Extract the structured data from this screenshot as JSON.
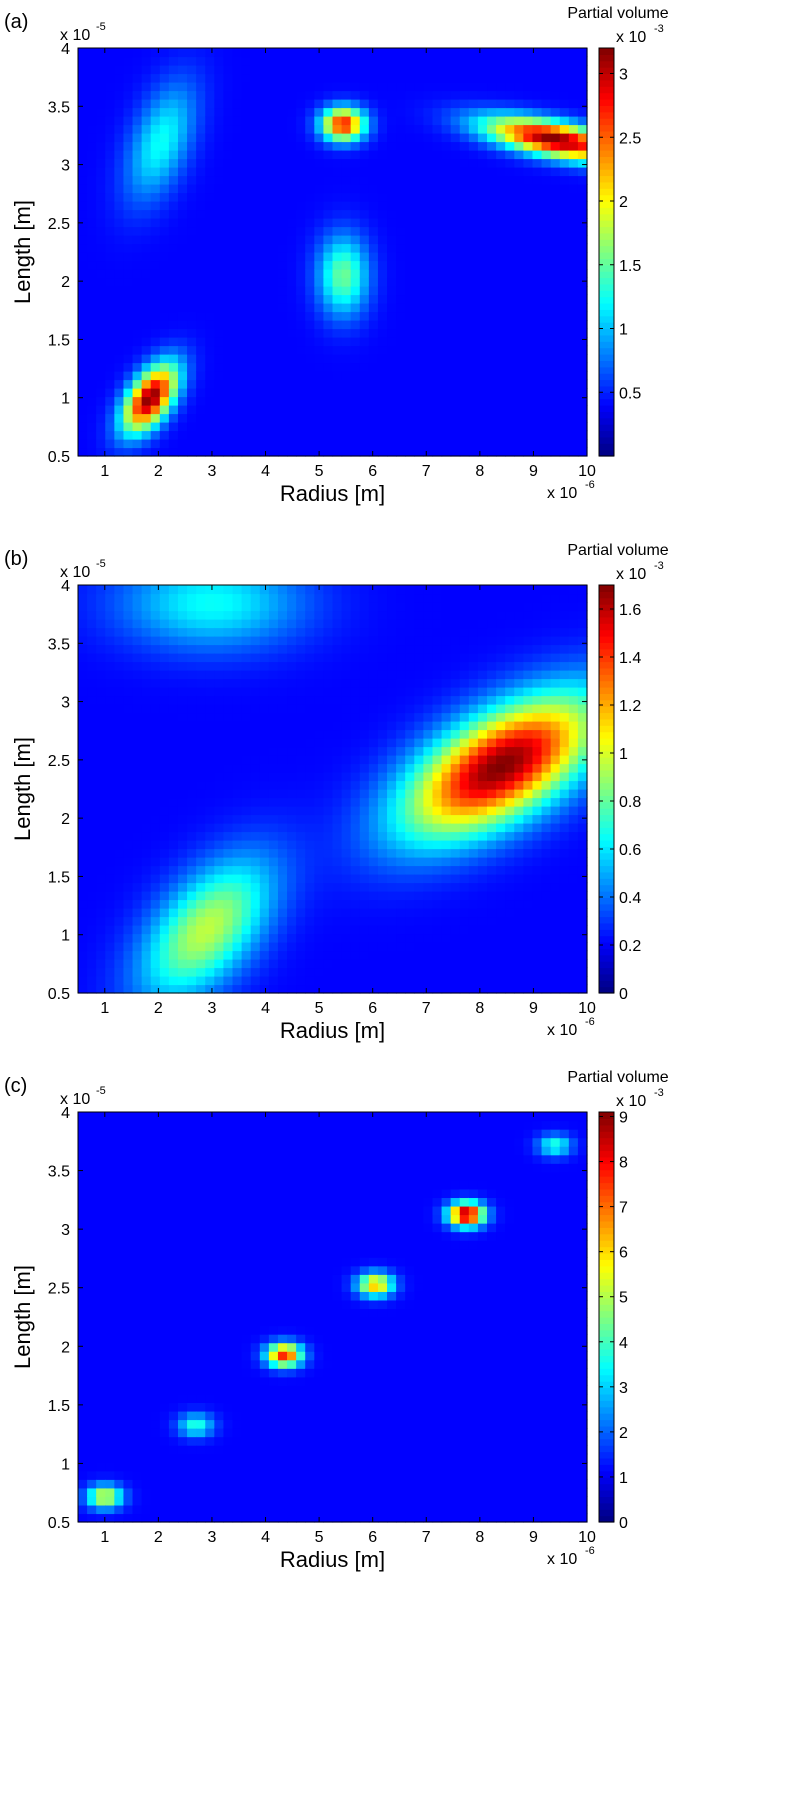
{
  "chart_data": [
    {
      "panel_label": "(a)",
      "type": "heatmap",
      "xlabel": "Radius [m]",
      "ylabel": "Length [m]",
      "x_multiplier": "x 10",
      "x_exponent": "-6",
      "y_multiplier": "x 10",
      "y_exponent": "-5",
      "xlim": [
        0.5,
        10.0
      ],
      "ylim": [
        0.5,
        4.0
      ],
      "xticks": [
        "1",
        "2",
        "3",
        "4",
        "5",
        "6",
        "7",
        "8",
        "9",
        "10"
      ],
      "yticks": [
        "0.5",
        "1",
        "1.5",
        "2",
        "2.5",
        "3",
        "3.5",
        "4"
      ],
      "colorbar": {
        "title": "Partial volume",
        "multiplier": "x 10",
        "exponent": "-3",
        "range": [
          0,
          3.2
        ],
        "ticks": [
          "0.5",
          "1",
          "1.5",
          "2",
          "2.5",
          "3"
        ],
        "colormap": "jet"
      },
      "peaks": [
        {
          "x": 1.85,
          "y": 1.0,
          "peak": 3.2,
          "sx": 0.35,
          "sy": 0.2,
          "corr": 0.55
        },
        {
          "x": 2.05,
          "y": 3.2,
          "peak": 0.95,
          "sx": 0.45,
          "sy": 0.35,
          "corr": 0.5
        },
        {
          "x": 5.45,
          "y": 3.35,
          "peak": 2.7,
          "sx": 0.28,
          "sy": 0.1,
          "corr": 0.0
        },
        {
          "x": 5.45,
          "y": 2.05,
          "peak": 1.3,
          "sx": 0.33,
          "sy": 0.24,
          "corr": 0.0
        },
        {
          "x": 9.4,
          "y": 3.22,
          "peak": 3.2,
          "sx": 0.9,
          "sy": 0.13,
          "corr": -0.6
        }
      ]
    },
    {
      "panel_label": "(b)",
      "type": "heatmap",
      "xlabel": "Radius [m]",
      "ylabel": "Length [m]",
      "x_multiplier": "x 10",
      "x_exponent": "-6",
      "y_multiplier": "x 10",
      "y_exponent": "-5",
      "xlim": [
        0.5,
        10.0
      ],
      "ylim": [
        0.5,
        4.0
      ],
      "xticks": [
        "1",
        "2",
        "3",
        "4",
        "5",
        "6",
        "7",
        "8",
        "9",
        "10"
      ],
      "yticks": [
        "0.5",
        "1",
        "1.5",
        "2",
        "2.5",
        "3",
        "3.5",
        "4"
      ],
      "colorbar": {
        "title": "Partial volume",
        "multiplier": "x 10",
        "exponent": "-3",
        "range": [
          0,
          1.7
        ],
        "ticks": [
          "0",
          "0.2",
          "0.4",
          "0.6",
          "0.8",
          "1",
          "1.2",
          "1.4",
          "1.6"
        ],
        "colormap": "jet"
      },
      "peaks": [
        {
          "x": 2.9,
          "y": 1.05,
          "peak": 0.85,
          "sx": 0.85,
          "sy": 0.42,
          "corr": 0.55
        },
        {
          "x": 3.0,
          "y": 3.85,
          "peak": 0.5,
          "sx": 1.2,
          "sy": 0.28,
          "corr": 0.0
        },
        {
          "x": 8.4,
          "y": 2.45,
          "peak": 1.7,
          "sx": 1.25,
          "sy": 0.42,
          "corr": 0.6
        }
      ]
    },
    {
      "panel_label": "(c)",
      "type": "heatmap",
      "xlabel": "Radius [m]",
      "ylabel": "Length [m]",
      "x_multiplier": "x 10",
      "x_exponent": "-6",
      "y_multiplier": "x 10",
      "y_exponent": "-5",
      "xlim": [
        0.5,
        10.0
      ],
      "ylim": [
        0.5,
        4.0
      ],
      "xticks": [
        "1",
        "2",
        "3",
        "4",
        "5",
        "6",
        "7",
        "8",
        "9",
        "10"
      ],
      "yticks": [
        "0.5",
        "1",
        "1.5",
        "2",
        "2.5",
        "3",
        "3.5",
        "4"
      ],
      "colorbar": {
        "title": "Partial volume",
        "multiplier": "x 10",
        "exponent": "-3",
        "range": [
          0,
          9.1
        ],
        "ticks": [
          "0",
          "1",
          "2",
          "3",
          "4",
          "5",
          "6",
          "7",
          "8",
          "9"
        ],
        "colormap": "jet"
      },
      "peaks": [
        {
          "x": 1.0,
          "y": 0.72,
          "peak": 5.0,
          "sx": 0.23,
          "sy": 0.07,
          "corr": 0.0
        },
        {
          "x": 2.7,
          "y": 1.33,
          "peak": 3.0,
          "sx": 0.23,
          "sy": 0.07,
          "corr": 0.0
        },
        {
          "x": 4.35,
          "y": 1.93,
          "peak": 7.5,
          "sx": 0.23,
          "sy": 0.07,
          "corr": 0.0
        },
        {
          "x": 6.05,
          "y": 2.53,
          "peak": 6.0,
          "sx": 0.23,
          "sy": 0.07,
          "corr": 0.0
        },
        {
          "x": 7.75,
          "y": 3.13,
          "peak": 9.1,
          "sx": 0.23,
          "sy": 0.07,
          "corr": 0.0
        },
        {
          "x": 9.4,
          "y": 3.72,
          "peak": 3.0,
          "sx": 0.22,
          "sy": 0.065,
          "corr": 0.0
        }
      ]
    }
  ]
}
